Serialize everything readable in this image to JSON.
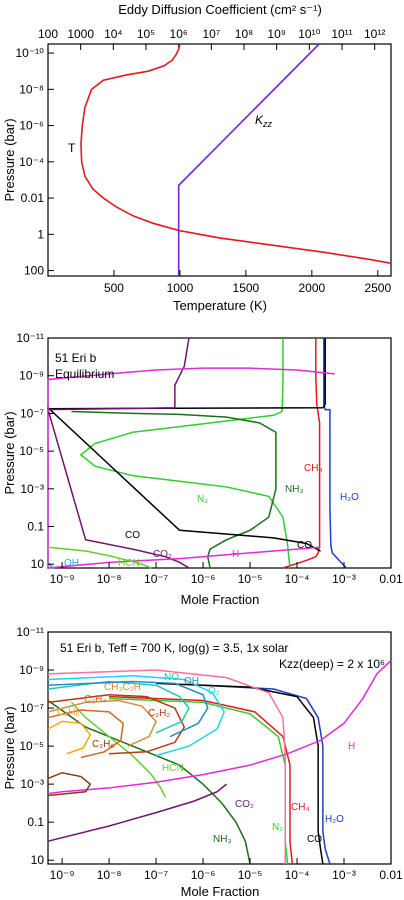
{
  "chart_data": [
    {
      "type": "line",
      "xlabel": "Temperature (K)",
      "x2label": "Eddy Diffusion Coefficient (cm² s⁻¹)",
      "ylabel": "Pressure (bar)",
      "xlim": [
        0,
        2600
      ],
      "x2lim_log10": [
        2,
        12.5
      ],
      "ylim_log10": [
        2.3,
        -10.5
      ],
      "x_ticks": [
        "500",
        "1000",
        "1500",
        "2000",
        "2500"
      ],
      "x2_ticks": [
        "100",
        "1000",
        "10⁴",
        "10⁵",
        "10⁶",
        "10⁷",
        "10⁸",
        "10⁹",
        "10¹⁰",
        "10¹¹",
        "10¹²"
      ],
      "y_ticks": [
        "10⁻¹⁰",
        "10⁻⁸",
        "10⁻⁶",
        "10⁻⁴",
        "0.01",
        "1",
        "100"
      ],
      "series": [
        {
          "name": "T",
          "color": "#e31a1c",
          "axis": "x",
          "x": [
            1000,
            990,
            970,
            940,
            880,
            760,
            600,
            420,
            330,
            280,
            260,
            250,
            255,
            280,
            340,
            420,
            520,
            650,
            800,
            1000,
            1300,
            1700,
            2100,
            2450,
            2600
          ],
          "logP": [
            -10.5,
            -10.2,
            -9.9,
            -9.6,
            -9.3,
            -9.0,
            -8.8,
            -8.5,
            -8.0,
            -7.0,
            -6.0,
            -5.0,
            -4.0,
            -3.2,
            -2.5,
            -2.0,
            -1.5,
            -1.0,
            -0.6,
            -0.2,
            0.2,
            0.6,
            1.0,
            1.4,
            1.6
          ]
        },
        {
          "name": "Kzz",
          "color": "#7d24c8",
          "axis": "x2",
          "logK": [
            6,
            6,
            10.3
          ],
          "logP": [
            2.3,
            -2.7,
            -10.5
          ]
        }
      ]
    },
    {
      "type": "line",
      "xlabel": "Mole Fraction",
      "ylabel": "Pressure (bar)",
      "xlim_log10": [
        -9.3,
        -2
      ],
      "ylim_log10": [
        1.2,
        -11
      ],
      "x_ticks": [
        "10⁻⁹",
        "10⁻⁸",
        "10⁻⁷",
        "10⁻⁶",
        "10⁻⁵",
        "10⁻⁴",
        "10⁻³",
        "0.01"
      ],
      "y_ticks": [
        "10⁻¹¹",
        "10⁻⁹",
        "10⁻⁷",
        "10⁻⁵",
        "10⁻³",
        "0.1",
        "10"
      ],
      "annotation": [
        "51 Eri b",
        "Equilibrium"
      ],
      "series": [
        {
          "name": "H₂O",
          "color": "#1f3fbf",
          "logX": [
            -3.43,
            -3.43,
            -3.4,
            -3.3,
            -3.3,
            -3.28,
            -3.25,
            -3.1,
            -2.95
          ],
          "logP": [
            -11,
            -7.5,
            -7.2,
            -7.2,
            -2,
            0,
            0.4,
            0.8,
            1.2
          ]
        },
        {
          "name": "CH₄",
          "color": "#e31a1c",
          "logX": [
            -3.6,
            -3.6,
            -3.58,
            -3.55,
            -3.52,
            -3.52,
            -3.55,
            -3.6,
            -3.8,
            -4.3
          ],
          "logP": [
            -11,
            -9,
            -7.5,
            -7.0,
            -6.5,
            0,
            0.4,
            0.6,
            0.8,
            1.2
          ]
        },
        {
          "name": "N₂",
          "color": "#33cc33",
          "logX": [
            -4.3,
            -4.3,
            -4.32,
            -4.5,
            -5.5,
            -6.5,
            -7.5,
            -8.3,
            -8.6,
            -8.3,
            -7.5,
            -6.5,
            -5.5,
            -4.6,
            -4.3,
            -4.2,
            -4.15
          ],
          "logP": [
            -11,
            -8.5,
            -7.1,
            -6.9,
            -6.6,
            -6.3,
            -6.0,
            -5.4,
            -4.8,
            -4.2,
            -3.7,
            -3.4,
            -3.1,
            -2.6,
            -1.5,
            0,
            1.2
          ]
        },
        {
          "name": "NH₃",
          "color": "#1b6e1b",
          "logX": [
            -8.8,
            -7.5,
            -6.5,
            -5.5,
            -4.8,
            -4.45,
            -4.45,
            -4.6,
            -5.0,
            -5.5,
            -5.85,
            -5.9,
            -5.85
          ],
          "logP": [
            -7.1,
            -7.0,
            -6.95,
            -6.8,
            -6.5,
            -6.0,
            -3.0,
            -1.5,
            -0.8,
            -0.3,
            0.2,
            0.6,
            1.2
          ]
        },
        {
          "name": "CO",
          "color": "#000000",
          "logX": [
            -3.4,
            -3.4,
            -3.45,
            -9.3,
            -9.3,
            -6.5,
            -4.5,
            -3.8,
            -3.5
          ],
          "logP": [
            -11,
            -7.5,
            -7.3,
            -7.25,
            -7.3,
            -0.8,
            -0.4,
            -0.1,
            0.3
          ]
        },
        {
          "name": "CO₂",
          "color": "#6e1470",
          "logX": [
            -6.3,
            -6.4,
            -6.6,
            -6.6,
            -9.3,
            -8.5,
            -7.5,
            -6.8,
            -6.5,
            -6.3
          ],
          "logP": [
            -11,
            -9.5,
            -8.5,
            -7.3,
            -7.2,
            -0.3,
            0.2,
            0.6,
            0.9,
            1.2
          ]
        },
        {
          "name": "H",
          "color": "#e02bd8",
          "logX": [
            -3.2,
            -4.0,
            -5.0,
            -6.0,
            -7.0,
            -8.0,
            -9.3,
            -9.3,
            -8.0,
            -6.5,
            -5.5,
            -4.5,
            -3.5
          ],
          "logP": [
            -9.1,
            -9.3,
            -9.4,
            -9.4,
            -9.3,
            -9.1,
            -8.8,
            1.2,
            0.9,
            0.7,
            0.5,
            0.3,
            0.1
          ]
        },
        {
          "name": "HCN",
          "color": "#66cc33",
          "logX": [
            -9.3,
            -8.5,
            -8.0,
            -7.6,
            -7.3,
            -7.1
          ],
          "logP": [
            0.1,
            0.3,
            0.55,
            0.8,
            1.0,
            1.2
          ]
        },
        {
          "name": "OH",
          "color": "#22aadd",
          "logX": [
            -9.3,
            -9.2
          ],
          "logP": [
            0.9,
            1.2
          ]
        }
      ],
      "labels": [
        "H₂O",
        "CH₄",
        "N₂",
        "NH₃",
        "CO",
        "CO",
        "CO₂",
        "H",
        "HCN",
        "OH"
      ]
    },
    {
      "type": "line",
      "xlabel": "Mole Fraction",
      "ylabel": "Pressure (bar)",
      "xlim_log10": [
        -9.3,
        -2
      ],
      "ylim_log10": [
        1.2,
        -11
      ],
      "x_ticks": [
        "10⁻⁹",
        "10⁻⁸",
        "10⁻⁷",
        "10⁻⁶",
        "10⁻⁵",
        "10⁻⁴",
        "10⁻³",
        "0.01"
      ],
      "y_ticks": [
        "10⁻¹¹",
        "10⁻⁹",
        "10⁻⁷",
        "10⁻⁵",
        "10⁻³",
        "0.1",
        "10"
      ],
      "annotation": [
        "51 Eri b, Teff = 700 K, log(g) = 3.5, 1x solar",
        "Kzz(deep) = 2 x 10⁶"
      ],
      "series": [
        {
          "name": "H₂O",
          "color": "#1f3fbf",
          "logX": [
            -6.0,
            -4.5,
            -3.8,
            -3.55,
            -3.45,
            -3.45,
            -3.4,
            -3.3
          ],
          "logP": [
            -8.2,
            -8.0,
            -7.5,
            -6.5,
            -5.0,
            -0.5,
            0.4,
            1.2
          ]
        },
        {
          "name": "CO",
          "color": "#000000",
          "logX": [
            -7.0,
            -5.0,
            -4.0,
            -3.65,
            -3.55,
            -3.55,
            -3.5,
            -3.45
          ],
          "logP": [
            -8.3,
            -8.1,
            -7.6,
            -6.5,
            -5.0,
            -0.5,
            0.4,
            1.2
          ]
        },
        {
          "name": "CH₄",
          "color": "#e31a1c",
          "logX": [
            -8.0,
            -6.0,
            -4.9,
            -4.3,
            -4.15,
            -4.15,
            -4.1
          ],
          "logP": [
            -7.6,
            -7.4,
            -6.8,
            -5.5,
            -4.0,
            0.0,
            1.2
          ]
        },
        {
          "name": "N₂",
          "color": "#33cc33",
          "logX": [
            -8.0,
            -6.0,
            -5.0,
            -4.4,
            -4.25,
            -4.25,
            -4.2
          ],
          "logP": [
            -7.5,
            -7.3,
            -6.7,
            -5.5,
            -4.0,
            0.0,
            1.2
          ]
        },
        {
          "name": "NH₃",
          "color": "#1b6e1b",
          "logX": [
            -9.3,
            -8.5,
            -7.5,
            -6.5,
            -6.0,
            -5.6,
            -5.3,
            -5.1,
            -5.0
          ],
          "logP": [
            -7.4,
            -6.0,
            -5.0,
            -4.0,
            -3.0,
            -2.0,
            -1.0,
            0.0,
            1.2
          ]
        },
        {
          "name": "HCN",
          "color": "#66cc33",
          "logX": [
            -8.8,
            -8.5,
            -8.0,
            -7.5,
            -7.1,
            -6.9,
            -6.8
          ],
          "logP": [
            -7.3,
            -6.5,
            -5.5,
            -4.5,
            -3.5,
            -2.8,
            -2.3
          ]
        },
        {
          "name": "CO₂",
          "color": "#6e1470",
          "logX": [
            -9.3,
            -8.0,
            -7.0,
            -6.2,
            -5.7,
            -5.5
          ],
          "logP": [
            0.0,
            -0.8,
            -1.5,
            -2.1,
            -2.6,
            -3.0
          ]
        },
        {
          "name": "H",
          "color": "#e02bd8",
          "logX": [
            -2.0,
            -2.3,
            -2.6,
            -3.0,
            -3.5,
            -4.2,
            -5.0,
            -6.0,
            -7.0,
            -8.0,
            -9.0,
            -9.3
          ],
          "logP": [
            -9.5,
            -8.8,
            -7.5,
            -6.2,
            -5.3,
            -4.6,
            -4.0,
            -3.5,
            -3.1,
            -2.8,
            -2.6,
            -2.5
          ]
        },
        {
          "name": "CH₃C₂H",
          "color": "#d98c3a",
          "logX": [
            -9.3,
            -8.5,
            -7.8,
            -7.3,
            -7.0,
            -7.15,
            -7.6
          ],
          "logP": [
            -6.8,
            -7.3,
            -7.4,
            -7.1,
            -6.3,
            -5.5,
            -5.0
          ]
        },
        {
          "name": "C₂H₄",
          "color": "#d2691e",
          "logX": [
            -9.3,
            -8.6,
            -8.0,
            -7.7,
            -7.75,
            -8.1,
            -8.6
          ],
          "logP": [
            -6.5,
            -6.9,
            -6.8,
            -6.2,
            -5.3,
            -4.7,
            -4.4
          ]
        },
        {
          "name": "C₆H₆",
          "color": "#f2a900",
          "logX": [
            -9.3,
            -9.0,
            -8.6,
            -8.4,
            -8.55,
            -8.9
          ],
          "logP": [
            -5.9,
            -6.3,
            -6.2,
            -5.6,
            -4.9,
            -4.6
          ]
        },
        {
          "name": "C₂H₂",
          "color": "#b23a12",
          "logX": [
            -9.3,
            -8.0,
            -7.2,
            -6.6,
            -6.4,
            -6.6,
            -7.2,
            -8.0
          ],
          "logP": [
            -7.3,
            -7.7,
            -7.6,
            -7.0,
            -6.0,
            -5.2,
            -4.7,
            -4.6
          ]
        },
        {
          "name": "C₂H₆",
          "color": "#8b3a0f",
          "logX": [
            -9.3,
            -9.0,
            -8.6,
            -8.4,
            -8.5,
            -8.9,
            -9.3
          ],
          "logP": [
            -3.3,
            -3.6,
            -3.4,
            -3.0,
            -2.6,
            -2.5,
            -2.4
          ]
        },
        {
          "name": "NO",
          "color": "#22ccaa",
          "logX": [
            -9.3,
            -8.0,
            -7.0,
            -6.5,
            -6.3,
            -6.45,
            -7.0
          ],
          "logP": [
            -8.0,
            -8.4,
            -8.2,
            -7.6,
            -7.0,
            -6.3,
            -5.7
          ]
        },
        {
          "name": "OH",
          "color": "#1f8fbf",
          "logX": [
            -9.3,
            -7.5,
            -6.6,
            -6.0,
            -5.9,
            -6.1,
            -6.7
          ],
          "logP": [
            -8.2,
            -8.4,
            -8.3,
            -7.7,
            -7.0,
            -6.2,
            -5.5
          ]
        },
        {
          "name": "O₂",
          "color": "#22d3e6",
          "logX": [
            -9.3,
            -7.5,
            -6.4,
            -5.8,
            -5.55,
            -5.7,
            -6.3,
            -7.0
          ],
          "logP": [
            -8.5,
            -8.7,
            -8.5,
            -7.8,
            -6.8,
            -5.9,
            -5.0,
            -4.5
          ]
        },
        {
          "name": "Ar",
          "color": "#ff6f9f",
          "logX": [
            -9.3,
            -7.0,
            -5.5,
            -4.6,
            -4.3,
            -4.25,
            -4.25
          ],
          "logP": [
            -8.8,
            -9.0,
            -8.6,
            -7.8,
            -6.5,
            -4.5,
            1.2
          ]
        }
      ],
      "labels": [
        "C₆H₆",
        "C₂H₄",
        "CH₃C₂H",
        "C₂H₂",
        "C₂H₆",
        "NO",
        "OH",
        "O₂",
        "HCN",
        "H",
        "CO₂",
        "CH₄",
        "N₂",
        "NH₃",
        "CO",
        "H₂O"
      ]
    }
  ]
}
